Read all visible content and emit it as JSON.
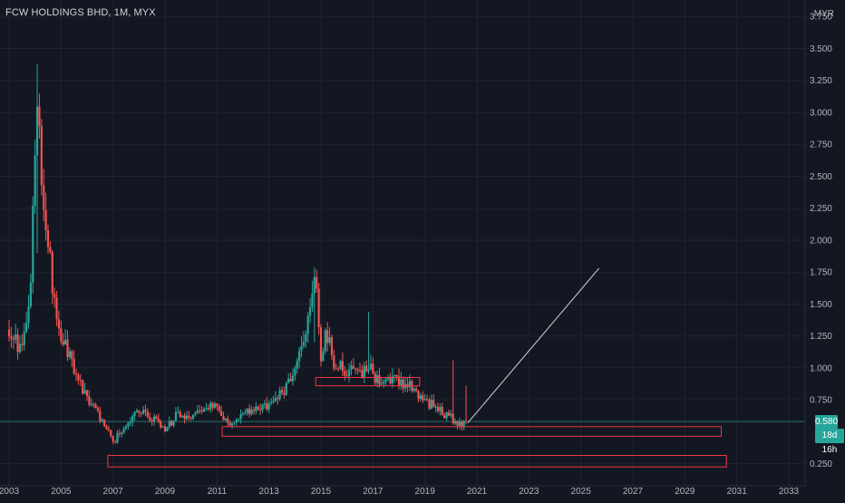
{
  "header": {
    "symbol": "FCW HOLDINGS BHD, 1M, MYX",
    "currency": "MYR"
  },
  "price_axis": {
    "ticks": [
      "3.750",
      "3.500",
      "3.250",
      "3.000",
      "2.750",
      "2.500",
      "2.250",
      "2.000",
      "1.750",
      "1.500",
      "1.250",
      "1.000",
      "0.750",
      "0.250"
    ]
  },
  "time_axis": {
    "ticks": [
      "2003",
      "2005",
      "2007",
      "2009",
      "2011",
      "2013",
      "2015",
      "2017",
      "2019",
      "2021",
      "2023",
      "2025",
      "2027",
      "2029",
      "2031",
      "2033"
    ]
  },
  "last_price": {
    "label": "0.580",
    "value": 0.58
  },
  "countdown": "18d 16h",
  "colors": {
    "background": "#131722",
    "up": "#26a69a",
    "down": "#ef5350",
    "box_outline": "#f23645",
    "grid": "#1f2430",
    "trend_line": "#d1d4dc"
  },
  "chart_data": {
    "type": "candlestick",
    "title": "FCW HOLDINGS BHD, 1M, MYX",
    "currency": "MYR",
    "timeframe": "1M",
    "ylim": [
      0.12,
      3.78
    ],
    "xlim": [
      2003.0,
      2034.0
    ],
    "grid": false,
    "anchors": [
      [
        2003.0,
        1.3
      ],
      [
        2003.35,
        1.18
      ],
      [
        2003.6,
        1.25
      ],
      [
        2003.82,
        1.55
      ],
      [
        2003.9,
        2.1
      ],
      [
        2004.1,
        3.3
      ],
      [
        2004.25,
        2.3
      ],
      [
        2004.45,
        2.05
      ],
      [
        2004.7,
        1.6
      ],
      [
        2005.0,
        1.25
      ],
      [
        2005.3,
        1.1
      ],
      [
        2005.6,
        0.95
      ],
      [
        2005.9,
        0.8
      ],
      [
        2006.2,
        0.72
      ],
      [
        2006.5,
        0.62
      ],
      [
        2006.8,
        0.5
      ],
      [
        2007.05,
        0.4
      ],
      [
        2007.2,
        0.48
      ],
      [
        2007.6,
        0.58
      ],
      [
        2007.9,
        0.68
      ],
      [
        2008.3,
        0.62
      ],
      [
        2008.7,
        0.58
      ],
      [
        2009.0,
        0.52
      ],
      [
        2009.4,
        0.62
      ],
      [
        2009.8,
        0.64
      ],
      [
        2010.3,
        0.64
      ],
      [
        2010.8,
        0.7
      ],
      [
        2011.1,
        0.66
      ],
      [
        2011.5,
        0.57
      ],
      [
        2011.9,
        0.6
      ],
      [
        2012.2,
        0.66
      ],
      [
        2012.7,
        0.7
      ],
      [
        2013.2,
        0.74
      ],
      [
        2013.7,
        0.85
      ],
      [
        2014.0,
        1.05
      ],
      [
        2014.3,
        1.2
      ],
      [
        2014.6,
        1.5
      ],
      [
        2014.8,
        1.68
      ],
      [
        2015.0,
        1.08
      ],
      [
        2015.2,
        1.3
      ],
      [
        2015.5,
        1.05
      ],
      [
        2015.8,
        1.0
      ],
      [
        2016.3,
        0.98
      ],
      [
        2016.7,
        0.97
      ],
      [
        2016.9,
        1.0
      ],
      [
        2017.1,
        0.92
      ],
      [
        2017.5,
        0.88
      ],
      [
        2017.9,
        0.9
      ],
      [
        2018.3,
        0.88
      ],
      [
        2018.7,
        0.8
      ],
      [
        2019.2,
        0.72
      ],
      [
        2019.6,
        0.66
      ],
      [
        2019.9,
        0.62
      ],
      [
        2020.4,
        0.56
      ],
      [
        2020.65,
        0.58
      ]
    ],
    "spikes": [
      {
        "x": 2004.05,
        "high": 3.38,
        "low": 1.9
      },
      {
        "x": 2014.75,
        "high": 1.78,
        "low": 1.2
      },
      {
        "x": 2016.85,
        "high": 1.44,
        "low": 0.95
      },
      {
        "x": 2020.1,
        "high": 1.06,
        "low": 0.68
      },
      {
        "x": 2020.55,
        "high": 0.86,
        "low": 0.56
      }
    ],
    "last": {
      "x": 2020.6,
      "value": 0.58
    },
    "rectangles": [
      {
        "x1": 2014.8,
        "x2": 2018.8,
        "y1": 0.925,
        "y2": 0.86
      },
      {
        "x1": 2011.2,
        "x2": 2030.4,
        "y1": 0.54,
        "y2": 0.465
      },
      {
        "x1": 2006.8,
        "x2": 2030.6,
        "y1": 0.315,
        "y2": 0.225
      }
    ],
    "trend_line": {
      "x1": 2020.65,
      "y1": 0.57,
      "x2": 2025.7,
      "y2": 1.78
    }
  }
}
